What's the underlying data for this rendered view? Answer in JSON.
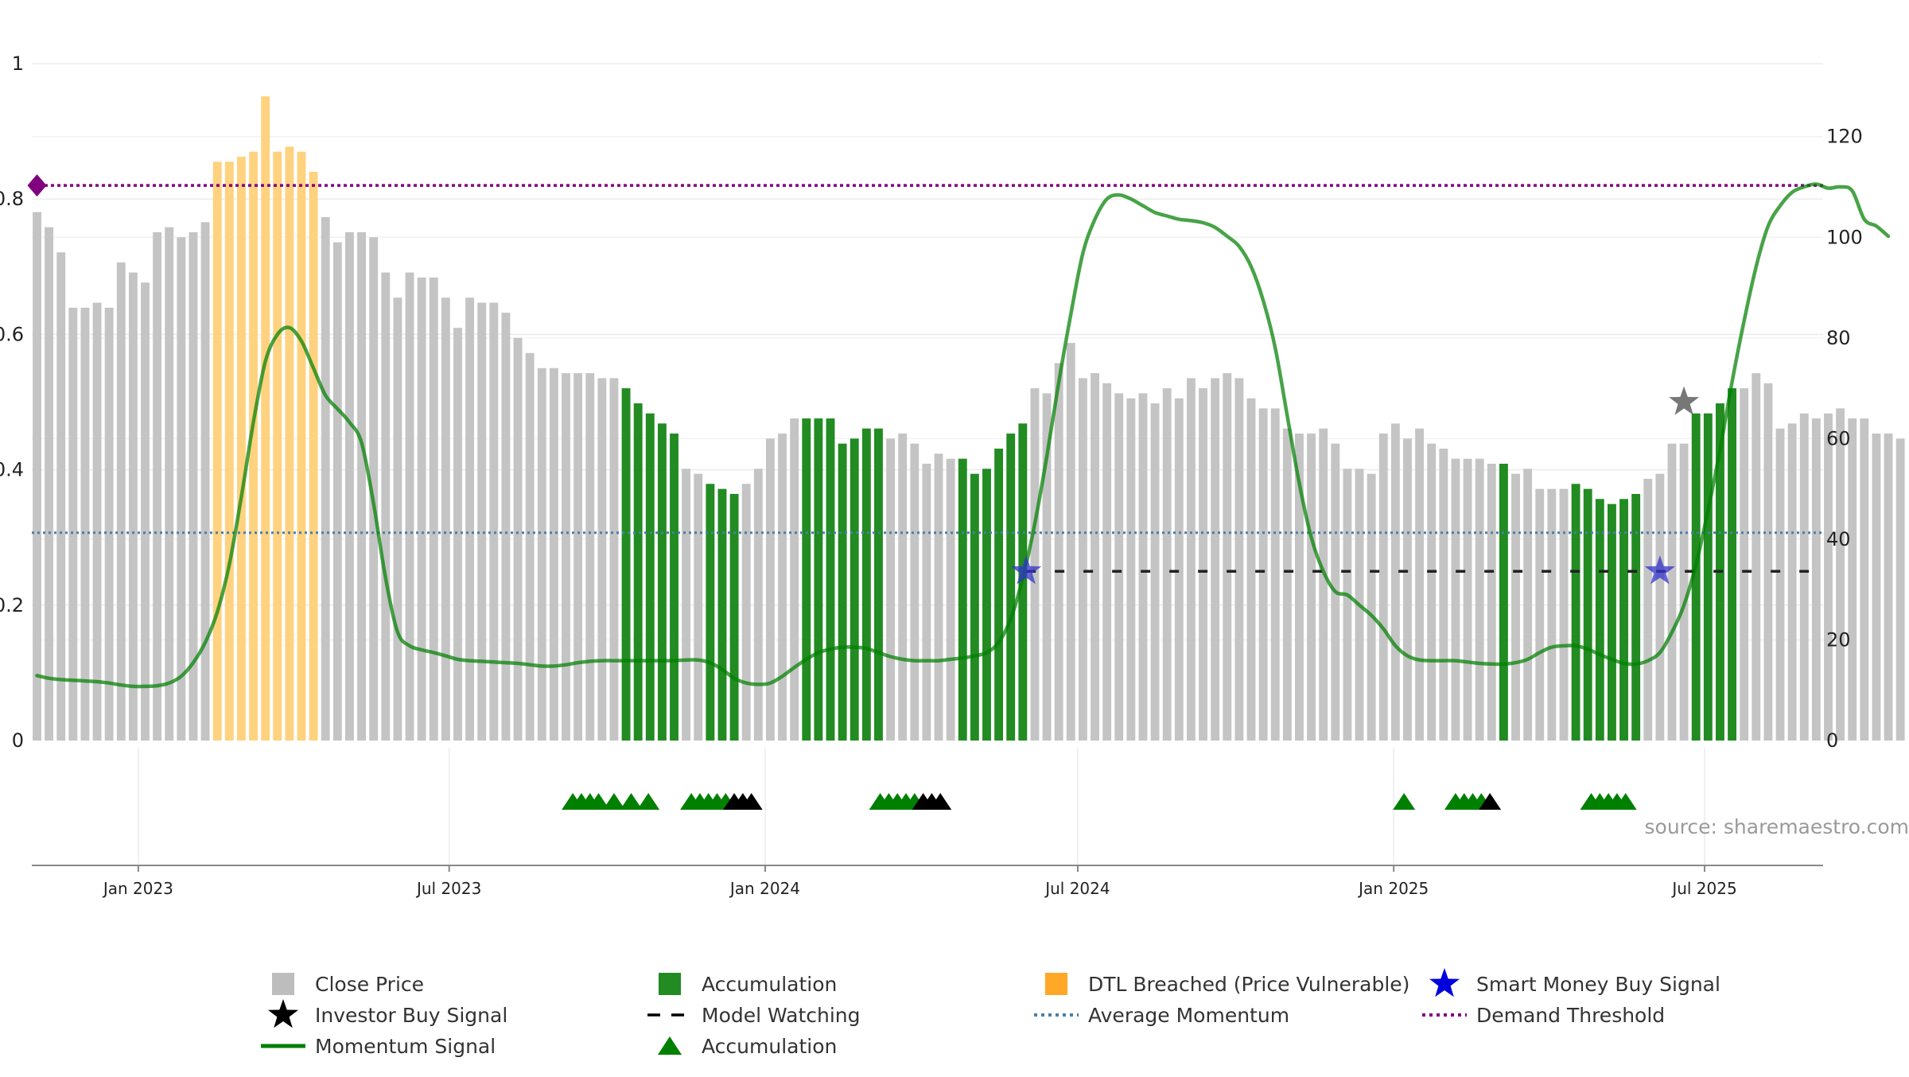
{
  "chart_data": {
    "type": "bar",
    "title": "",
    "xlabel": "",
    "ylabel": "",
    "left_axis": {
      "ylim": [
        0,
        1
      ],
      "ticks": [
        0,
        0.2,
        0.4,
        0.6,
        0.8,
        1
      ],
      "tick_labels": [
        "0",
        "0.2",
        "0.4",
        "0.6",
        "0.8",
        "1"
      ]
    },
    "right_axis": {
      "ylim": [
        0,
        134.5
      ],
      "ticks": [
        0,
        20,
        40,
        60,
        80,
        100,
        120
      ],
      "tick_labels": [
        "0",
        "20",
        "40",
        "60",
        "80",
        "100",
        "120"
      ]
    },
    "x_range": [
      "2022-10-31",
      "2025-09-08"
    ],
    "x_ticks": [
      {
        "date": "2023-01-01",
        "label": "Jan 2023"
      },
      {
        "date": "2023-07-01",
        "label": "Jul 2023"
      },
      {
        "date": "2024-01-01",
        "label": "Jan 2024"
      },
      {
        "date": "2024-07-01",
        "label": "Jul 2024"
      },
      {
        "date": "2025-01-01",
        "label": "Jan 2025"
      },
      {
        "date": "2025-07-01",
        "label": "Jul 2025"
      }
    ],
    "grid": true,
    "legend_position": "bottom",
    "bars": {
      "start_date": "2022-11-03",
      "interval": "weekly",
      "series_name": "Close Price",
      "values": [
        105,
        102,
        97,
        86,
        86,
        87,
        86,
        95,
        93,
        91,
        101,
        102,
        100,
        101,
        103,
        115,
        115,
        116,
        117,
        128,
        117,
        118,
        117,
        113,
        104,
        99,
        101,
        101,
        100,
        93,
        88,
        93,
        92,
        92,
        88,
        82,
        88,
        87,
        87,
        85,
        80,
        77,
        74,
        74,
        73,
        73,
        73,
        72,
        72,
        70,
        67,
        65,
        63,
        61,
        54,
        53,
        51,
        50,
        49,
        51,
        54,
        60,
        61,
        64,
        64,
        64,
        64,
        59,
        60,
        62,
        62,
        60,
        61,
        59,
        55,
        57,
        56,
        56,
        53,
        54,
        58,
        61,
        63,
        70,
        69,
        75,
        79,
        72,
        73,
        71,
        69,
        68,
        69,
        67,
        70,
        68,
        72,
        70,
        72,
        73,
        72,
        68,
        66,
        66,
        62,
        61,
        61,
        62,
        59,
        54,
        54,
        53,
        61,
        63,
        60,
        62,
        59,
        58,
        56,
        56,
        56,
        55,
        55,
        53,
        54,
        50,
        50,
        50,
        51,
        50,
        48,
        47,
        48,
        49,
        52,
        53,
        59,
        59,
        65,
        65,
        67,
        70,
        70,
        73,
        71,
        62,
        63,
        65,
        64,
        65,
        66,
        64,
        64,
        61,
        61,
        60
      ],
      "categories": {
        "dtl": [
          15,
          23
        ],
        "accumulation": [
          [
            49,
            53
          ],
          [
            56,
            58
          ],
          [
            64,
            70
          ],
          [
            77,
            82
          ],
          [
            122,
            122
          ],
          [
            128,
            133
          ],
          [
            138,
            141
          ]
        ]
      }
    },
    "momentum_signal": {
      "name": "Momentum Signal",
      "values": [
        0.096,
        0.092,
        0.09,
        0.089,
        0.088,
        0.087,
        0.085,
        0.082,
        0.08,
        0.08,
        0.081,
        0.085,
        0.095,
        0.115,
        0.145,
        0.19,
        0.26,
        0.36,
        0.47,
        0.56,
        0.6,
        0.61,
        0.59,
        0.55,
        0.51,
        0.49,
        0.47,
        0.44,
        0.35,
        0.24,
        0.16,
        0.14,
        0.134,
        0.13,
        0.125,
        0.12,
        0.118,
        0.117,
        0.116,
        0.115,
        0.114,
        0.112,
        0.11,
        0.11,
        0.112,
        0.115,
        0.117,
        0.118,
        0.118,
        0.118,
        0.118,
        0.118,
        0.118,
        0.118,
        0.119,
        0.119,
        0.115,
        0.105,
        0.092,
        0.085,
        0.083,
        0.085,
        0.095,
        0.108,
        0.12,
        0.13,
        0.135,
        0.138,
        0.138,
        0.136,
        0.13,
        0.124,
        0.12,
        0.118,
        0.118,
        0.118,
        0.12,
        0.122,
        0.125,
        0.13,
        0.145,
        0.18,
        0.24,
        0.32,
        0.42,
        0.53,
        0.63,
        0.72,
        0.77,
        0.8,
        0.806,
        0.8,
        0.79,
        0.78,
        0.775,
        0.77,
        0.768,
        0.765,
        0.758,
        0.745,
        0.73,
        0.7,
        0.65,
        0.58,
        0.48,
        0.38,
        0.3,
        0.25,
        0.22,
        0.215,
        0.2,
        0.185,
        0.165,
        0.14,
        0.125,
        0.119,
        0.118,
        0.118,
        0.118,
        0.116,
        0.114,
        0.113,
        0.113,
        0.115,
        0.12,
        0.13,
        0.138,
        0.14,
        0.14,
        0.135,
        0.127,
        0.12,
        0.114,
        0.113,
        0.118,
        0.13,
        0.16,
        0.2,
        0.26,
        0.34,
        0.43,
        0.53,
        0.62,
        0.7,
        0.76,
        0.79,
        0.81,
        0.818,
        0.822,
        0.816,
        0.818,
        0.812,
        0.77,
        0.76,
        0.745
      ]
    },
    "average_momentum": {
      "name": "Average Momentum",
      "value": 0.307
    },
    "demand_threshold": {
      "name": "Demand Threshold",
      "value": 0.82
    },
    "model_watching": {
      "name": "Model Watching",
      "y": 0.25,
      "x_range": [
        "2024-06-01",
        "2025-09-05"
      ]
    },
    "smart_money_buy_signals": {
      "name": "Smart Money Buy Signal",
      "points": [
        {
          "date": "2024-06-01",
          "y": 0.25
        },
        {
          "date": "2025-06-05",
          "y": 0.25
        }
      ]
    },
    "investor_buy_signals": {
      "name": "Investor Buy Signal",
      "points": [
        {
          "date": "2025-06-19",
          "y": 0.5
        }
      ]
    },
    "threshold_marker": {
      "date": "2022-11-03",
      "y": 0.82
    },
    "accumulation_triangles": {
      "green": [
        "2023-09-11",
        "2023-09-16",
        "2023-09-21",
        "2023-09-26",
        "2023-10-05",
        "2023-10-15",
        "2023-10-25",
        "2023-11-19",
        "2023-11-24",
        "2023-11-29",
        "2023-12-04",
        "2023-12-09",
        "2024-03-08",
        "2024-03-13",
        "2024-03-18",
        "2024-03-23",
        "2024-03-28",
        "2025-01-07",
        "2025-02-06",
        "2025-02-11",
        "2025-02-16",
        "2025-02-21",
        "2025-04-26",
        "2025-05-01",
        "2025-05-06",
        "2025-05-11",
        "2025-05-16"
      ],
      "black": [
        "2023-12-14",
        "2023-12-19",
        "2023-12-24",
        "2024-04-02",
        "2024-04-07",
        "2024-04-12",
        "2025-02-26"
      ]
    },
    "legend": [
      {
        "label": "Close Price",
        "symbol": "square",
        "color": "#bdbdbd"
      },
      {
        "label": "Accumulation",
        "symbol": "square",
        "color": "#228b22"
      },
      {
        "label": "DTL Breached (Price Vulnerable)",
        "symbol": "square",
        "color": "#ffa726"
      },
      {
        "label": "Smart Money Buy Signal",
        "symbol": "star",
        "color": "#0000dd"
      },
      {
        "label": "Investor Buy Signal",
        "symbol": "star",
        "color": "#000000"
      },
      {
        "label": "Model Watching",
        "symbol": "dash",
        "color": "#000000"
      },
      {
        "label": "Average Momentum",
        "symbol": "dot",
        "color": "#4a7fa8"
      },
      {
        "label": "Demand Threshold",
        "symbol": "dot",
        "color": "#800080"
      },
      {
        "label": "Momentum Signal",
        "symbol": "line",
        "color": "#008000"
      },
      {
        "label": "Accumulation",
        "symbol": "triangle",
        "color": "#008000"
      }
    ],
    "colors": {
      "close_price": "#c4c4c4",
      "accumulation": "#228b22",
      "dtl": "#ffd280",
      "momentum": "#008000",
      "average_momentum": "#4a7fa8",
      "demand_threshold": "#800080",
      "triangle_green": "#008000",
      "triangle_black": "#000000",
      "smart_money": "#3333cc",
      "investor": "#555555"
    }
  },
  "watermark": "source: sharemaestro.com"
}
